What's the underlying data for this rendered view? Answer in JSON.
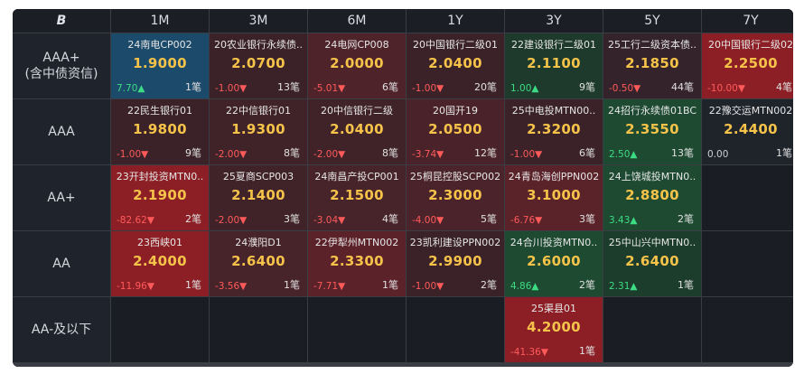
{
  "header": {
    "logo": "B",
    "columns": [
      "1M",
      "3M",
      "6M",
      "1Y",
      "3Y",
      "5Y",
      "7Y"
    ]
  },
  "rows": [
    {
      "label1": "AAA+",
      "label2": "(含中债资信)",
      "cells": [
        {
          "name": "24南电CP002",
          "rate": "1.9000",
          "change": "7.70▲",
          "count": "1笔",
          "dir": "up",
          "bg": "#1c4a6b"
        },
        {
          "name": "20农业银行永续债..",
          "rate": "2.0700",
          "change": "-1.00▼",
          "count": "13笔",
          "dir": "down",
          "bg": "#3a2228"
        },
        {
          "name": "24电网CP008",
          "rate": "2.0000",
          "change": "-5.01▼",
          "count": "6笔",
          "dir": "down",
          "bg": "#4e232a"
        },
        {
          "name": "20中国银行二级01",
          "rate": "2.0400",
          "change": "-1.00▼",
          "count": "20笔",
          "dir": "down",
          "bg": "#3a2228"
        },
        {
          "name": "22建设银行二级01",
          "rate": "2.1100",
          "change": "1.00▲",
          "count": "9笔",
          "dir": "up",
          "bg": "#1e3a2c"
        },
        {
          "name": "25工行二级资本债..",
          "rate": "2.1850",
          "change": "-0.50▼",
          "count": "44笔",
          "dir": "down",
          "bg": "#34232a"
        },
        {
          "name": "20中国银行二级02",
          "rate": "2.2500",
          "change": "-10.00▼",
          "count": "4笔",
          "dir": "down",
          "bg": "#8c1f25"
        }
      ]
    },
    {
      "label1": "AAA",
      "label2": "",
      "cells": [
        {
          "name": "22民生银行01",
          "rate": "1.9800",
          "change": "-1.00▼",
          "count": "9笔",
          "dir": "down",
          "bg": "#3a2228"
        },
        {
          "name": "22中信银行01",
          "rate": "1.9300",
          "change": "-2.00▼",
          "count": "8笔",
          "dir": "down",
          "bg": "#3f2329"
        },
        {
          "name": "20中信银行二级",
          "rate": "2.0400",
          "change": "-2.00▼",
          "count": "8笔",
          "dir": "down",
          "bg": "#3f2329"
        },
        {
          "name": "20国开19",
          "rate": "2.0500",
          "change": "-3.74▼",
          "count": "12笔",
          "dir": "down",
          "bg": "#4a232a"
        },
        {
          "name": "25中电投MTN00..",
          "rate": "2.3200",
          "change": "-1.00▼",
          "count": "6笔",
          "dir": "down",
          "bg": "#3a2228"
        },
        {
          "name": "24招行永续债01BC",
          "rate": "2.3550",
          "change": "2.50▲",
          "count": "13笔",
          "dir": "up",
          "bg": "#1d4a30"
        },
        {
          "name": "22豫交运MTN002",
          "rate": "2.4400",
          "change": "0.00",
          "count": "1笔",
          "dir": "flat",
          "bg": "#1f232a"
        }
      ]
    },
    {
      "label1": "AA+",
      "label2": "",
      "cells": [
        {
          "name": "23开封投资MTN0..",
          "rate": "2.1900",
          "change": "-82.62▼",
          "count": "2笔",
          "dir": "down",
          "bg": "#8c1f25"
        },
        {
          "name": "25夏商SCP003",
          "rate": "2.1400",
          "change": "-2.00▼",
          "count": "3笔",
          "dir": "down",
          "bg": "#3f2329"
        },
        {
          "name": "24南昌产投CP001",
          "rate": "2.1500",
          "change": "-3.04▼",
          "count": "4笔",
          "dir": "down",
          "bg": "#47232a"
        },
        {
          "name": "25桐昆控股SCP002",
          "rate": "2.3000",
          "change": "-4.00▼",
          "count": "5笔",
          "dir": "down",
          "bg": "#4b232a"
        },
        {
          "name": "24青岛海创PPN002",
          "rate": "3.1000",
          "change": "-6.76▼",
          "count": "3笔",
          "dir": "down",
          "bg": "#5a2229"
        },
        {
          "name": "24上饶城投MTN0..",
          "rate": "2.8800",
          "change": "3.43▲",
          "count": "2笔",
          "dir": "up",
          "bg": "#1d4a30"
        },
        null
      ]
    },
    {
      "label1": "AA",
      "label2": "",
      "cells": [
        {
          "name": "23西峡01",
          "rate": "2.4000",
          "change": "-11.96▼",
          "count": "1笔",
          "dir": "down",
          "bg": "#8c1f25"
        },
        {
          "name": "24濮阳D1",
          "rate": "2.6400",
          "change": "-3.56▼",
          "count": "1笔",
          "dir": "down",
          "bg": "#47232a"
        },
        {
          "name": "22伊犁州MTN002",
          "rate": "2.3300",
          "change": "-7.71▼",
          "count": "1笔",
          "dir": "down",
          "bg": "#5c2229"
        },
        {
          "name": "23凯利建设PPN002",
          "rate": "2.9900",
          "change": "-1.00▼",
          "count": "2笔",
          "dir": "down",
          "bg": "#3a2228"
        },
        {
          "name": "24合川投资MTN0..",
          "rate": "2.6000",
          "change": "4.86▲",
          "count": "2笔",
          "dir": "up",
          "bg": "#1d4a30"
        },
        {
          "name": "25中山兴中MTN0..",
          "rate": "2.6400",
          "change": "2.31▲",
          "count": "1笔",
          "dir": "up",
          "bg": "#1d3d2c"
        },
        null
      ]
    },
    {
      "label1": "AA-及以下",
      "label2": "",
      "cells": [
        null,
        null,
        null,
        null,
        {
          "name": "25渠县01",
          "rate": "4.2000",
          "change": "-41.36▼",
          "count": "1笔",
          "dir": "down",
          "bg": "#8c1f25"
        },
        null,
        null
      ]
    }
  ]
}
